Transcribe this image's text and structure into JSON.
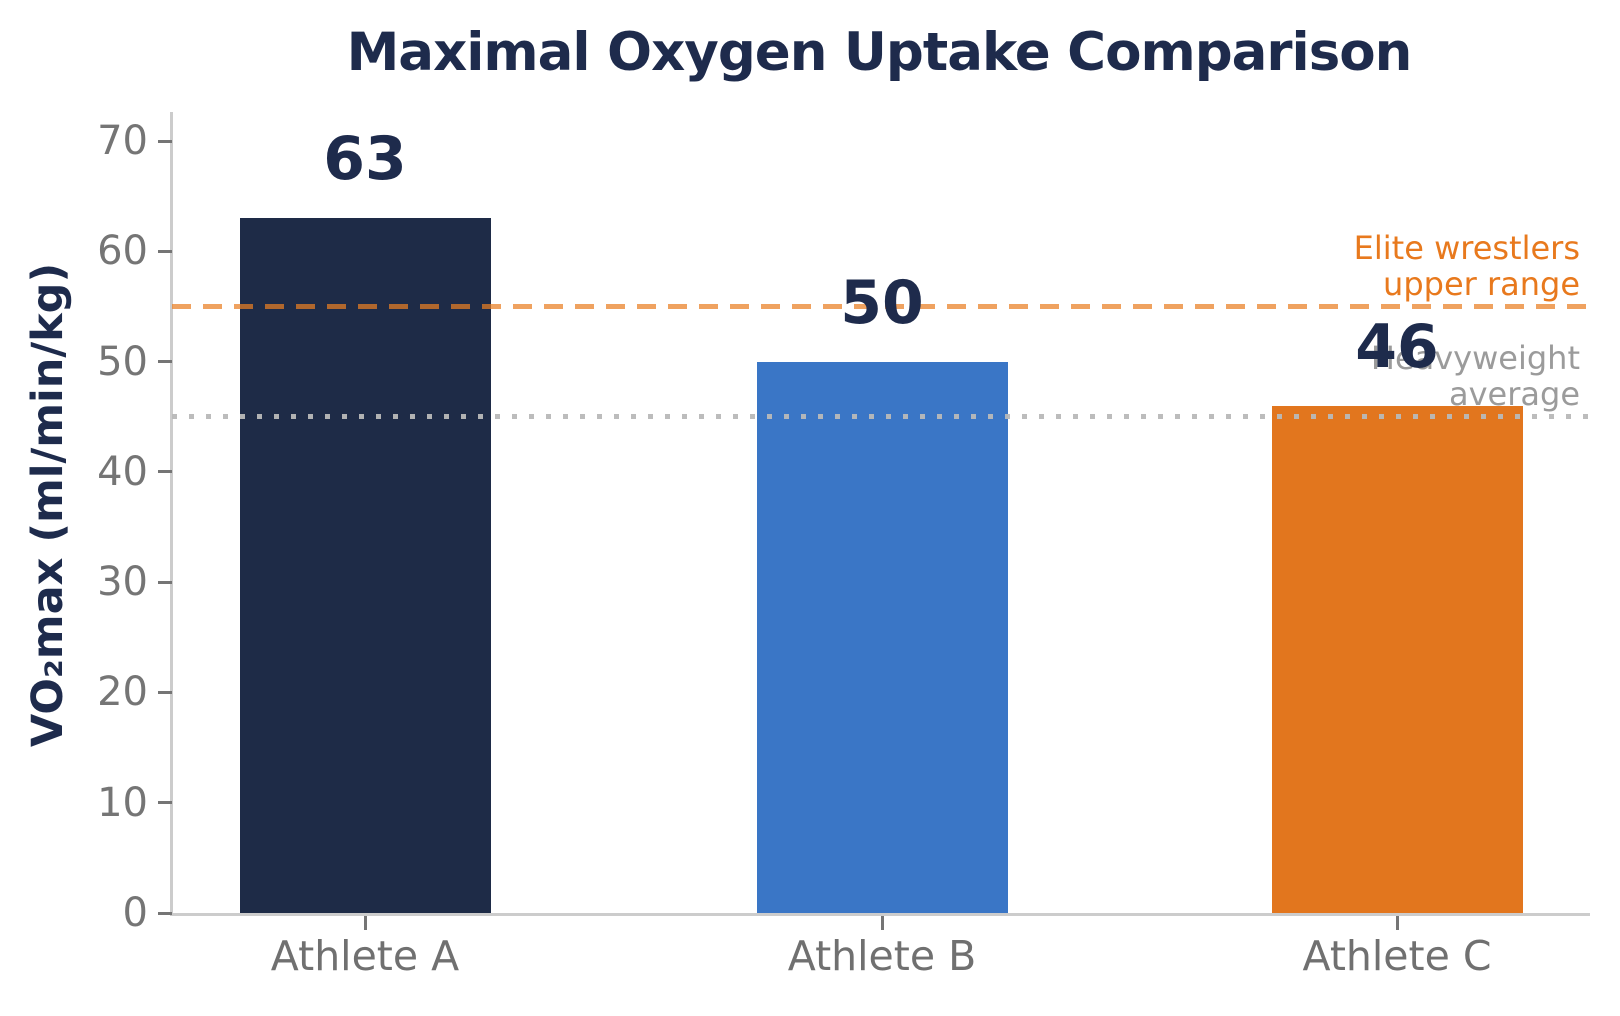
{
  "chart_data": {
    "type": "bar",
    "title": "Maximal Oxygen Uptake Comparison",
    "title_color": "#1e2b4c",
    "ylabel": "VO₂max (ml/min/kg)",
    "xlabel": "",
    "categories": [
      "Athlete A",
      "Athlete B",
      "Athlete C"
    ],
    "values": [
      63,
      50,
      46
    ],
    "bar_colors": [
      "#1e2b47",
      "#3a76c6",
      "#e2761e"
    ],
    "value_label_color": "#1e2b4c",
    "ylim": [
      0,
      70
    ],
    "yticks": [
      0,
      10,
      20,
      30,
      40,
      50,
      60,
      70
    ],
    "grid": false,
    "legend": "none",
    "tick_label_color": "#757575",
    "reference_lines": [
      {
        "value": 55,
        "style": "dashed",
        "label_lines": [
          "Elite wrestlers",
          "upper range"
        ],
        "label_color": "#e8791d"
      },
      {
        "value": 45,
        "style": "dotted",
        "label_lines": [
          "Heavyweight",
          "average"
        ],
        "label_color": "#9b9b9b"
      }
    ]
  }
}
